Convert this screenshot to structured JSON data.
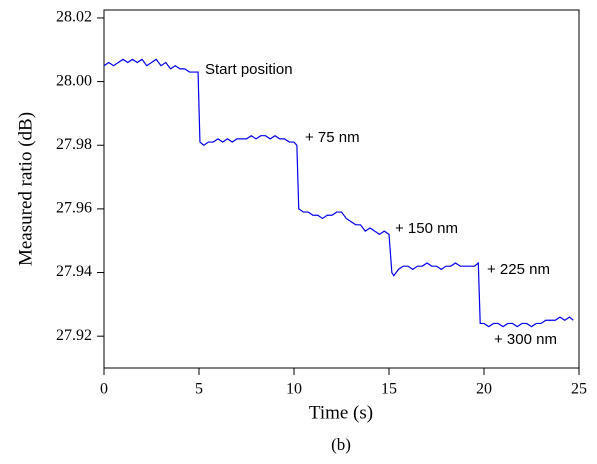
{
  "chart_data": {
    "type": "line",
    "x_label": "Time (s)",
    "y_label": "Measured ratio (dB)",
    "caption": "(b)",
    "xlim": [
      0,
      25
    ],
    "xticks": [
      0,
      5,
      10,
      15,
      20,
      25
    ],
    "ylim": [
      27.91,
      28.0225
    ],
    "yticks": [
      27.92,
      27.94,
      27.96,
      27.98,
      {
        "value": 28.0,
        "label": "28.00"
      },
      28.02
    ],
    "annotations": [
      "Start position",
      "+ 75 nm",
      "+ 150 nm",
      "+ 225 nm",
      "+ 300 nm"
    ],
    "color": "#0000ee",
    "x": [
      0,
      0.25,
      0.5,
      0.75,
      1,
      1.25,
      1.5,
      1.75,
      2,
      2.25,
      2.5,
      2.75,
      3,
      3.25,
      3.5,
      3.75,
      4,
      4.25,
      4.5,
      4.75,
      4.95,
      5.05,
      5.25,
      5.5,
      5.75,
      6,
      6.25,
      6.5,
      6.75,
      7,
      7.25,
      7.5,
      7.75,
      8,
      8.25,
      8.5,
      8.75,
      9,
      9.25,
      9.5,
      9.75,
      10,
      10.15,
      10.25,
      10.5,
      10.75,
      11,
      11.25,
      11.5,
      11.75,
      12,
      12.25,
      12.5,
      12.75,
      13,
      13.25,
      13.5,
      13.75,
      14,
      14.25,
      14.5,
      14.75,
      15,
      15.15,
      15.25,
      15.5,
      15.75,
      16,
      16.25,
      16.5,
      16.75,
      17,
      17.25,
      17.5,
      17.75,
      18,
      18.25,
      18.5,
      18.75,
      19,
      19.25,
      19.5,
      19.7,
      19.8,
      20,
      20.25,
      20.5,
      20.75,
      21,
      21.25,
      21.5,
      21.75,
      22,
      22.25,
      22.5,
      22.75,
      23,
      23.25,
      23.5,
      23.75,
      24,
      24.25,
      24.5,
      24.7
    ],
    "values": [
      28.005,
      28.006,
      28.005,
      28.006,
      28.007,
      28.006,
      28.007,
      28.006,
      28.007,
      28.005,
      28.006,
      28.007,
      28.005,
      28.006,
      28.004,
      28.005,
      28.004,
      28.004,
      28.003,
      28.003,
      28.003,
      27.981,
      27.98,
      27.981,
      27.981,
      27.982,
      27.981,
      27.982,
      27.981,
      27.982,
      27.982,
      27.982,
      27.983,
      27.982,
      27.983,
      27.983,
      27.982,
      27.983,
      27.982,
      27.982,
      27.981,
      27.981,
      27.98,
      27.96,
      27.959,
      27.959,
      27.958,
      27.958,
      27.957,
      27.958,
      27.958,
      27.959,
      27.959,
      27.957,
      27.956,
      27.955,
      27.955,
      27.953,
      27.954,
      27.953,
      27.952,
      27.953,
      27.952,
      27.94,
      27.939,
      27.941,
      27.942,
      27.942,
      27.941,
      27.942,
      27.942,
      27.943,
      27.942,
      27.942,
      27.941,
      27.942,
      27.942,
      27.943,
      27.942,
      27.942,
      27.942,
      27.942,
      27.943,
      27.924,
      27.924,
      27.923,
      27.924,
      27.924,
      27.923,
      27.924,
      27.924,
      27.923,
      27.924,
      27.924,
      27.923,
      27.924,
      27.924,
      27.925,
      27.925,
      27.925,
      27.926,
      27.925,
      27.926,
      27.925
    ]
  }
}
